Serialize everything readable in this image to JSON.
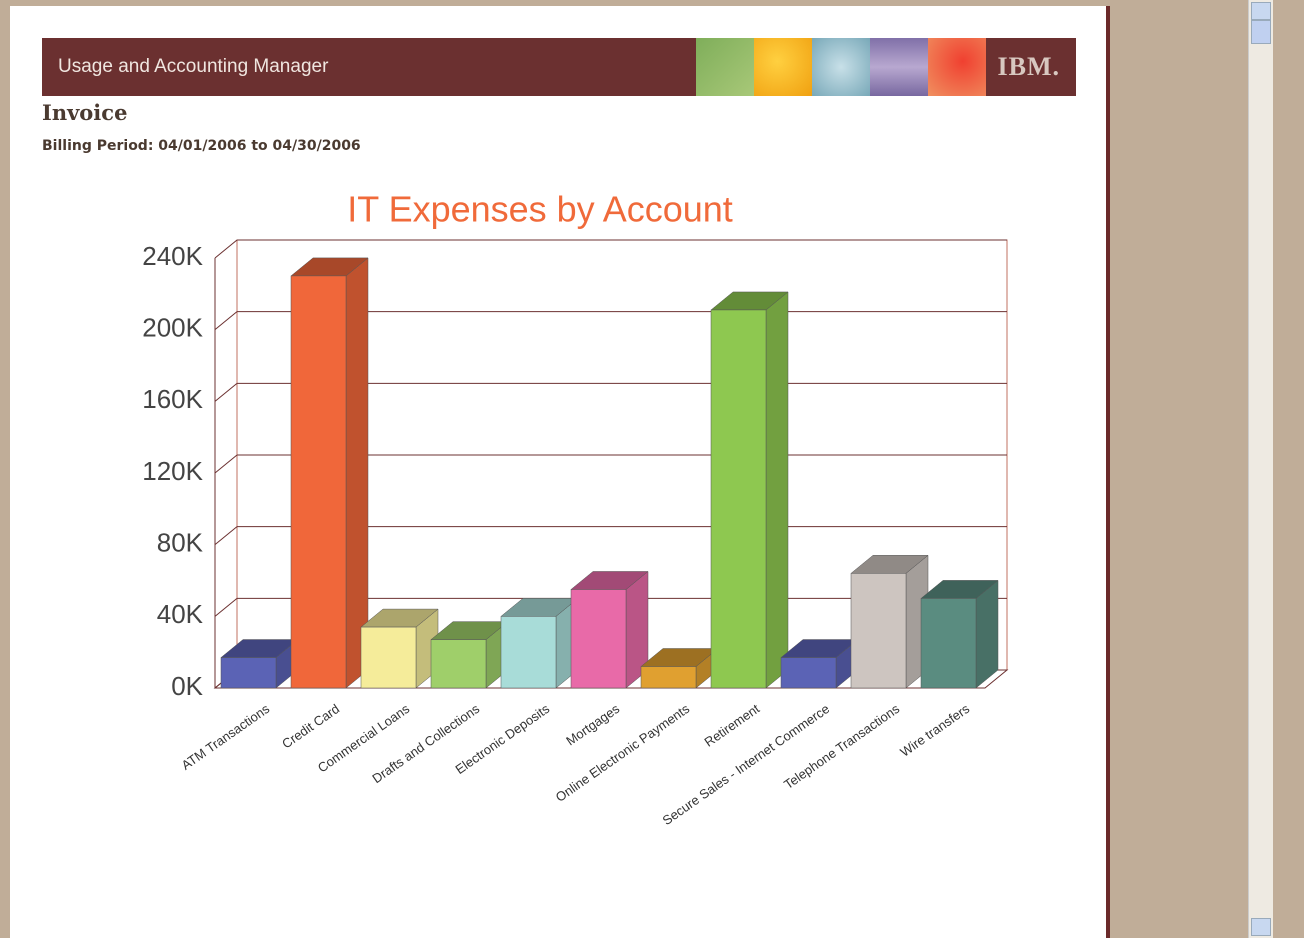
{
  "header": {
    "app_title": "Usage and Accounting Manager",
    "logo": "IBM."
  },
  "invoice": {
    "title": "Invoice",
    "billing_period": "Billing Period: 04/01/2006 to 04/30/2006"
  },
  "chart_data": {
    "type": "bar",
    "title": "IT Expenses by Account",
    "categories": [
      "ATM Transactions",
      "Credit Card",
      "Commercial Loans",
      "Drafts and Collections",
      "Electronic Deposits",
      "Mortgages",
      "Online Electronic Payments",
      "Retirement",
      "Secure Sales - Internet Commerce",
      "Telephone Transactions",
      "Wire transfers"
    ],
    "values": [
      17000,
      230000,
      34000,
      27000,
      40000,
      55000,
      12000,
      211000,
      17000,
      64000,
      50000
    ],
    "colors": [
      "#5b63b5",
      "#f0673a",
      "#f5ec9a",
      "#9fcf6a",
      "#a8dcd8",
      "#e86aa8",
      "#e0a030",
      "#8ec850",
      "#5b63b5",
      "#cdc5c0",
      "#5a8c80"
    ],
    "ylim": [
      0,
      240000
    ],
    "yticks": [
      {
        "value": 0,
        "label": "0K"
      },
      {
        "value": 40000,
        "label": "40K"
      },
      {
        "value": 80000,
        "label": "80K"
      },
      {
        "value": 120000,
        "label": "120K"
      },
      {
        "value": 160000,
        "label": "160K"
      },
      {
        "value": 200000,
        "label": "200K"
      },
      {
        "value": 240000,
        "label": "240K"
      }
    ],
    "grid": true
  }
}
